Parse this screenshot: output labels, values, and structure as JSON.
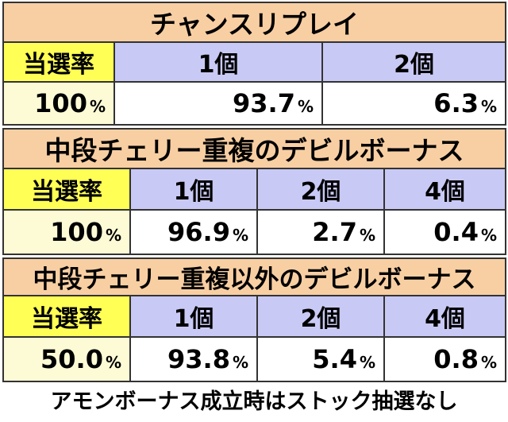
{
  "sections": [
    {
      "title": "チャンスリプレイ",
      "rate_label": "当選率",
      "headers": [
        "1個",
        "2個"
      ],
      "rate": "100",
      "values": [
        "93.7",
        "6.3"
      ]
    },
    {
      "title": "中段チェリー重複のデビルボーナス",
      "rate_label": "当選率",
      "headers": [
        "1個",
        "2個",
        "4個"
      ],
      "rate": "100",
      "values": [
        "96.9",
        "2.7",
        "0.4"
      ]
    },
    {
      "title": "中段チェリー重複以外のデビルボーナス",
      "rate_label": "当選率",
      "headers": [
        "1個",
        "2個",
        "4個"
      ],
      "rate": "50.0",
      "values": [
        "93.8",
        "5.4",
        "0.8"
      ]
    }
  ],
  "unit": "%",
  "footnote": "アモンボーナス成立時はストック抽選なし",
  "colors": {
    "title_bg": "#f8cfa3",
    "label_bg": "#ffff55",
    "header_bg": "#c9c9f5",
    "rate_bg": "#fdfbd6",
    "value_bg": "#ffffff"
  }
}
